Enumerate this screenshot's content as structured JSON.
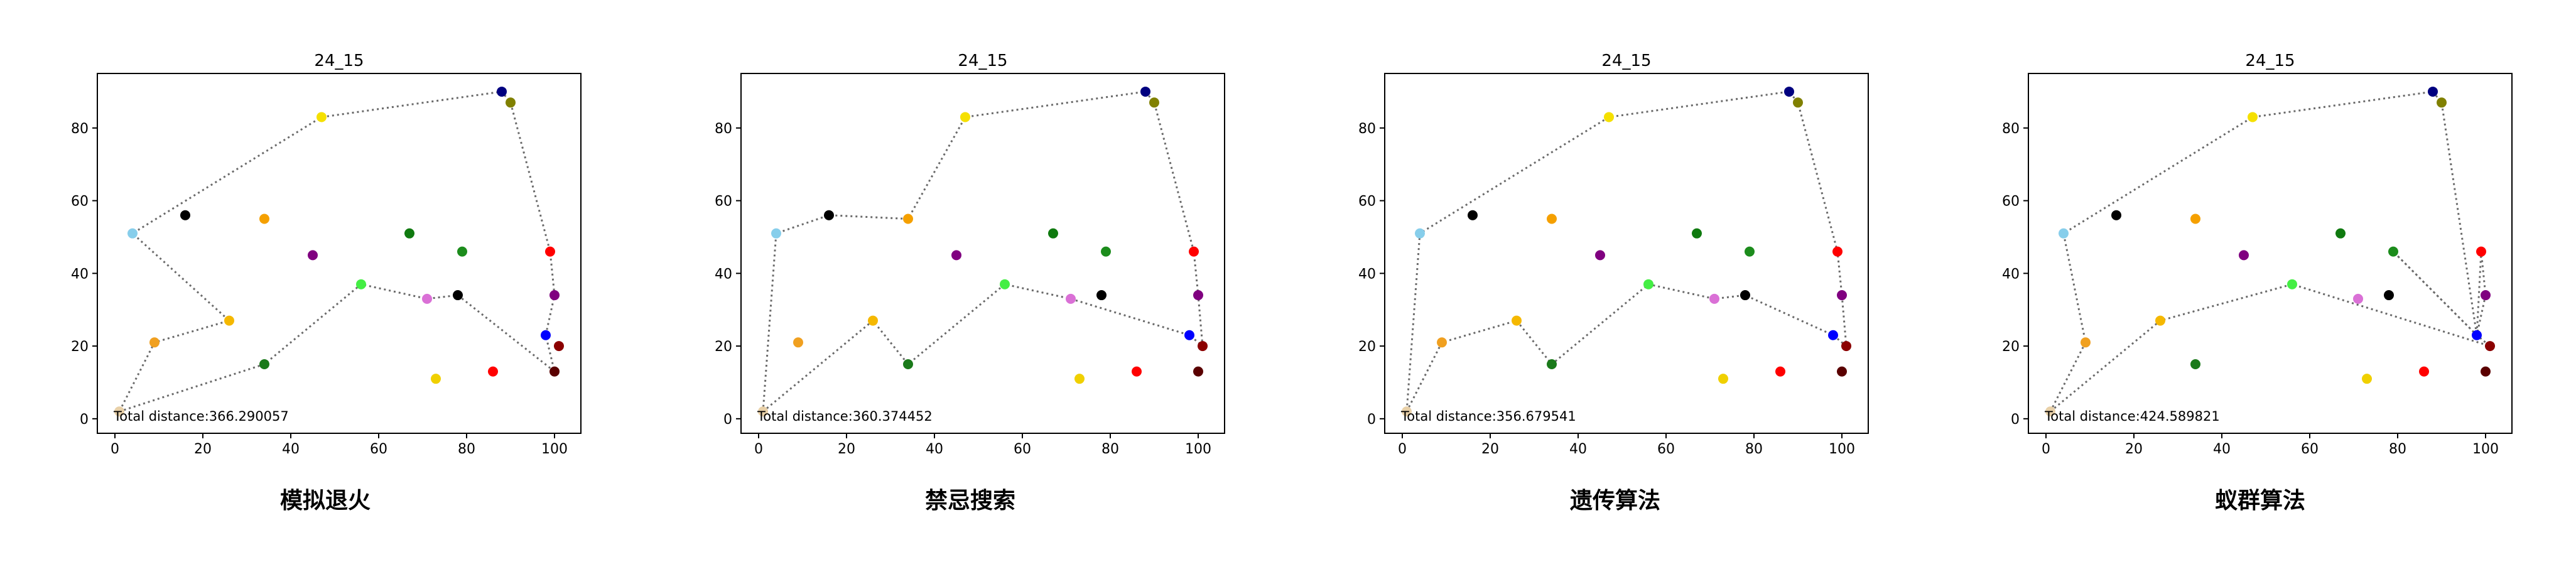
{
  "chart_data": [
    {
      "type": "scatter",
      "title": "24_15",
      "caption": "模拟退火",
      "annotation": "Total distance:366.290057",
      "xlim": [
        -4,
        106
      ],
      "ylim": [
        -4,
        95
      ],
      "xticks": [
        0,
        20,
        40,
        60,
        80,
        100
      ],
      "yticks": [
        0,
        20,
        40,
        60,
        80
      ],
      "grid": false,
      "points": [
        {
          "x": 1,
          "y": 2,
          "color": "#e8d0a8"
        },
        {
          "x": 4,
          "y": 51,
          "color": "#87ceeb"
        },
        {
          "x": 9,
          "y": 21,
          "color": "#f0a020"
        },
        {
          "x": 16,
          "y": 56,
          "color": "#000000"
        },
        {
          "x": 26,
          "y": 27,
          "color": "#f5b800"
        },
        {
          "x": 34,
          "y": 55,
          "color": "#f5a000"
        },
        {
          "x": 34,
          "y": 15,
          "color": "#1a7a1a"
        },
        {
          "x": 45,
          "y": 45,
          "color": "#800080"
        },
        {
          "x": 47,
          "y": 83,
          "color": "#f5e000"
        },
        {
          "x": 56,
          "y": 37,
          "color": "#44ee44"
        },
        {
          "x": 67,
          "y": 51,
          "color": "#0f7a0f"
        },
        {
          "x": 71,
          "y": 33,
          "color": "#da70d6"
        },
        {
          "x": 73,
          "y": 11,
          "color": "#f0d000"
        },
        {
          "x": 78,
          "y": 34,
          "color": "#000000"
        },
        {
          "x": 79,
          "y": 46,
          "color": "#1c8c1c"
        },
        {
          "x": 86,
          "y": 13,
          "color": "#ff0000"
        },
        {
          "x": 88,
          "y": 90,
          "color": "#000080"
        },
        {
          "x": 90,
          "y": 87,
          "color": "#808000"
        },
        {
          "x": 98,
          "y": 23,
          "color": "#0000ff"
        },
        {
          "x": 99,
          "y": 46,
          "color": "#ff0000"
        },
        {
          "x": 100,
          "y": 34,
          "color": "#800080"
        },
        {
          "x": 100,
          "y": 13,
          "color": "#5a0000"
        },
        {
          "x": 101,
          "y": 20,
          "color": "#8b0000"
        }
      ],
      "route": [
        [
          1,
          2
        ],
        [
          34,
          15
        ],
        [
          56,
          37
        ],
        [
          71,
          33
        ],
        [
          78,
          34
        ],
        [
          100,
          13
        ],
        [
          98,
          23
        ],
        [
          100,
          34
        ],
        [
          99,
          46
        ],
        [
          90,
          87
        ],
        [
          88,
          90
        ],
        [
          47,
          83
        ],
        [
          4,
          51
        ],
        [
          26,
          27
        ],
        [
          9,
          21
        ],
        [
          1,
          2
        ]
      ]
    },
    {
      "type": "scatter",
      "title": "24_15",
      "caption": "禁忌搜索",
      "annotation": "Total distance:360.374452",
      "xlim": [
        -4,
        106
      ],
      "ylim": [
        -4,
        95
      ],
      "xticks": [
        0,
        20,
        40,
        60,
        80,
        100
      ],
      "yticks": [
        0,
        20,
        40,
        60,
        80
      ],
      "grid": false,
      "points": [
        {
          "x": 1,
          "y": 2,
          "color": "#e8d0a8"
        },
        {
          "x": 4,
          "y": 51,
          "color": "#87ceeb"
        },
        {
          "x": 9,
          "y": 21,
          "color": "#f0a020"
        },
        {
          "x": 16,
          "y": 56,
          "color": "#000000"
        },
        {
          "x": 26,
          "y": 27,
          "color": "#f5b800"
        },
        {
          "x": 34,
          "y": 55,
          "color": "#f5a000"
        },
        {
          "x": 34,
          "y": 15,
          "color": "#1a7a1a"
        },
        {
          "x": 45,
          "y": 45,
          "color": "#800080"
        },
        {
          "x": 47,
          "y": 83,
          "color": "#f5e000"
        },
        {
          "x": 56,
          "y": 37,
          "color": "#44ee44"
        },
        {
          "x": 67,
          "y": 51,
          "color": "#0f7a0f"
        },
        {
          "x": 71,
          "y": 33,
          "color": "#da70d6"
        },
        {
          "x": 73,
          "y": 11,
          "color": "#f0d000"
        },
        {
          "x": 78,
          "y": 34,
          "color": "#000000"
        },
        {
          "x": 79,
          "y": 46,
          "color": "#1c8c1c"
        },
        {
          "x": 86,
          "y": 13,
          "color": "#ff0000"
        },
        {
          "x": 88,
          "y": 90,
          "color": "#000080"
        },
        {
          "x": 90,
          "y": 87,
          "color": "#808000"
        },
        {
          "x": 98,
          "y": 23,
          "color": "#0000ff"
        },
        {
          "x": 99,
          "y": 46,
          "color": "#ff0000"
        },
        {
          "x": 100,
          "y": 34,
          "color": "#800080"
        },
        {
          "x": 100,
          "y": 13,
          "color": "#5a0000"
        },
        {
          "x": 101,
          "y": 20,
          "color": "#8b0000"
        }
      ],
      "route": [
        [
          1,
          2
        ],
        [
          26,
          27
        ],
        [
          34,
          15
        ],
        [
          56,
          37
        ],
        [
          71,
          33
        ],
        [
          98,
          23
        ],
        [
          101,
          20
        ],
        [
          100,
          34
        ],
        [
          99,
          46
        ],
        [
          90,
          87
        ],
        [
          88,
          90
        ],
        [
          47,
          83
        ],
        [
          34,
          55
        ],
        [
          16,
          56
        ],
        [
          4,
          51
        ],
        [
          1,
          2
        ]
      ]
    },
    {
      "type": "scatter",
      "title": "24_15",
      "caption": "遗传算法",
      "annotation": "Total distance:356.679541",
      "xlim": [
        -4,
        106
      ],
      "ylim": [
        -4,
        95
      ],
      "xticks": [
        0,
        20,
        40,
        60,
        80,
        100
      ],
      "yticks": [
        0,
        20,
        40,
        60,
        80
      ],
      "grid": false,
      "points": [
        {
          "x": 1,
          "y": 2,
          "color": "#e8d0a8"
        },
        {
          "x": 4,
          "y": 51,
          "color": "#87ceeb"
        },
        {
          "x": 9,
          "y": 21,
          "color": "#f0a020"
        },
        {
          "x": 16,
          "y": 56,
          "color": "#000000"
        },
        {
          "x": 26,
          "y": 27,
          "color": "#f5b800"
        },
        {
          "x": 34,
          "y": 55,
          "color": "#f5a000"
        },
        {
          "x": 34,
          "y": 15,
          "color": "#1a7a1a"
        },
        {
          "x": 45,
          "y": 45,
          "color": "#800080"
        },
        {
          "x": 47,
          "y": 83,
          "color": "#f5e000"
        },
        {
          "x": 56,
          "y": 37,
          "color": "#44ee44"
        },
        {
          "x": 67,
          "y": 51,
          "color": "#0f7a0f"
        },
        {
          "x": 71,
          "y": 33,
          "color": "#da70d6"
        },
        {
          "x": 73,
          "y": 11,
          "color": "#f0d000"
        },
        {
          "x": 78,
          "y": 34,
          "color": "#000000"
        },
        {
          "x": 79,
          "y": 46,
          "color": "#1c8c1c"
        },
        {
          "x": 86,
          "y": 13,
          "color": "#ff0000"
        },
        {
          "x": 88,
          "y": 90,
          "color": "#000080"
        },
        {
          "x": 90,
          "y": 87,
          "color": "#808000"
        },
        {
          "x": 98,
          "y": 23,
          "color": "#0000ff"
        },
        {
          "x": 99,
          "y": 46,
          "color": "#ff0000"
        },
        {
          "x": 100,
          "y": 34,
          "color": "#800080"
        },
        {
          "x": 100,
          "y": 13,
          "color": "#5a0000"
        },
        {
          "x": 101,
          "y": 20,
          "color": "#8b0000"
        }
      ],
      "route": [
        [
          1,
          2
        ],
        [
          9,
          21
        ],
        [
          26,
          27
        ],
        [
          34,
          15
        ],
        [
          56,
          37
        ],
        [
          71,
          33
        ],
        [
          78,
          34
        ],
        [
          98,
          23
        ],
        [
          101,
          20
        ],
        [
          100,
          34
        ],
        [
          99,
          46
        ],
        [
          90,
          87
        ],
        [
          88,
          90
        ],
        [
          47,
          83
        ],
        [
          4,
          51
        ],
        [
          1,
          2
        ]
      ]
    },
    {
      "type": "scatter",
      "title": "24_15",
      "caption": "蚁群算法",
      "annotation": "Total distance:424.589821",
      "xlim": [
        -4,
        106
      ],
      "ylim": [
        -4,
        95
      ],
      "xticks": [
        0,
        20,
        40,
        60,
        80,
        100
      ],
      "yticks": [
        0,
        20,
        40,
        60,
        80
      ],
      "grid": false,
      "points": [
        {
          "x": 1,
          "y": 2,
          "color": "#e8d0a8"
        },
        {
          "x": 4,
          "y": 51,
          "color": "#87ceeb"
        },
        {
          "x": 9,
          "y": 21,
          "color": "#f0a020"
        },
        {
          "x": 16,
          "y": 56,
          "color": "#000000"
        },
        {
          "x": 26,
          "y": 27,
          "color": "#f5b800"
        },
        {
          "x": 34,
          "y": 55,
          "color": "#f5a000"
        },
        {
          "x": 34,
          "y": 15,
          "color": "#1a7a1a"
        },
        {
          "x": 45,
          "y": 45,
          "color": "#800080"
        },
        {
          "x": 47,
          "y": 83,
          "color": "#f5e000"
        },
        {
          "x": 56,
          "y": 37,
          "color": "#44ee44"
        },
        {
          "x": 67,
          "y": 51,
          "color": "#0f7a0f"
        },
        {
          "x": 71,
          "y": 33,
          "color": "#da70d6"
        },
        {
          "x": 73,
          "y": 11,
          "color": "#f0d000"
        },
        {
          "x": 78,
          "y": 34,
          "color": "#000000"
        },
        {
          "x": 79,
          "y": 46,
          "color": "#1c8c1c"
        },
        {
          "x": 86,
          "y": 13,
          "color": "#ff0000"
        },
        {
          "x": 88,
          "y": 90,
          "color": "#000080"
        },
        {
          "x": 90,
          "y": 87,
          "color": "#808000"
        },
        {
          "x": 98,
          "y": 23,
          "color": "#0000ff"
        },
        {
          "x": 99,
          "y": 46,
          "color": "#ff0000"
        },
        {
          "x": 100,
          "y": 34,
          "color": "#800080"
        },
        {
          "x": 100,
          "y": 13,
          "color": "#5a0000"
        },
        {
          "x": 101,
          "y": 20,
          "color": "#8b0000"
        }
      ],
      "route": [
        [
          1,
          2
        ],
        [
          9,
          21
        ],
        [
          4,
          51
        ],
        [
          47,
          83
        ],
        [
          88,
          90
        ],
        [
          90,
          87
        ],
        [
          98,
          23
        ],
        [
          99,
          46
        ],
        [
          100,
          34
        ],
        [
          98,
          23
        ],
        [
          79,
          46
        ],
        [
          98,
          23
        ],
        [
          101,
          20
        ],
        [
          56,
          37
        ],
        [
          26,
          27
        ],
        [
          1,
          2
        ]
      ]
    }
  ]
}
